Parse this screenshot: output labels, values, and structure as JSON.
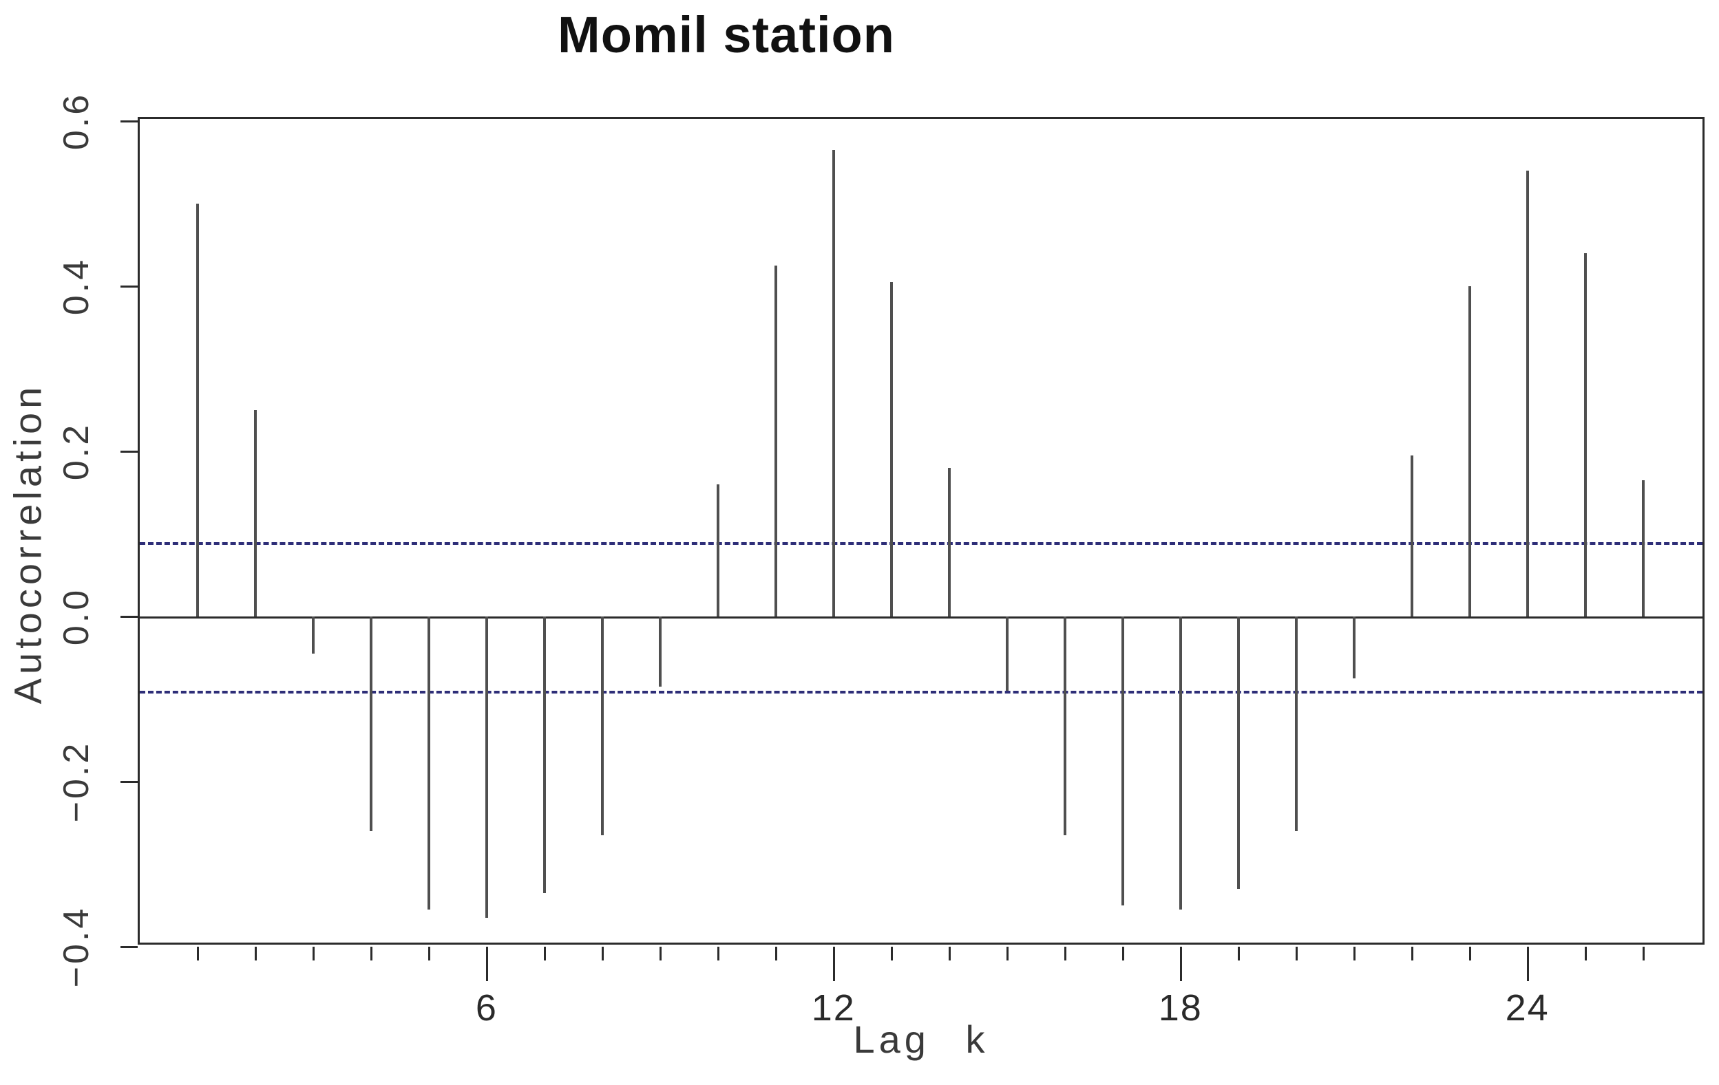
{
  "title": "Momil station",
  "chart_data": {
    "type": "bar",
    "subtype": "autocorrelation-stem-plot",
    "title": "Momil station",
    "xlabel": "Lag k",
    "ylabel": "Autocorrelation",
    "xlim": [
      0,
      27.1
    ],
    "ylim": [
      -0.4,
      0.6025
    ],
    "grid": false,
    "legend": null,
    "x": [
      1,
      2,
      3,
      4,
      5,
      6,
      7,
      8,
      9,
      10,
      11,
      12,
      13,
      14,
      15,
      16,
      17,
      18,
      19,
      20,
      21,
      22,
      23,
      24,
      25,
      26
    ],
    "values": [
      0.5,
      0.25,
      -0.045,
      -0.26,
      -0.355,
      -0.365,
      -0.335,
      -0.265,
      -0.085,
      0.16,
      0.425,
      0.565,
      0.405,
      0.18,
      -0.09,
      -0.265,
      -0.35,
      -0.355,
      -0.33,
      -0.26,
      -0.075,
      0.195,
      0.4,
      0.54,
      0.44,
      0.165
    ],
    "confidence_bounds": {
      "upper": 0.09,
      "lower": -0.09
    },
    "y_ticks": [
      0.6,
      0.4,
      0.2,
      0.0,
      -0.2,
      -0.4
    ],
    "y_tick_labels": [
      "0.6",
      "0.4",
      "0.2",
      "0.0",
      "−0.2",
      "−0.4"
    ],
    "x_major_ticks": [
      6,
      12,
      18,
      24
    ],
    "x_tick_labels": [
      "6",
      "12",
      "18",
      "24"
    ],
    "colors": {
      "bar": "#4f4f4f",
      "axis": "#2b2b2b",
      "confidence_line": "#2e2e78",
      "background": "#ffffff",
      "title_text": "#111111",
      "label_text": "#3a3a3a"
    }
  }
}
